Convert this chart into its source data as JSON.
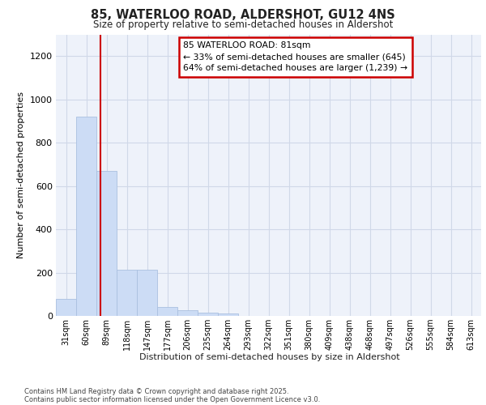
{
  "title_line1": "85, WATERLOO ROAD, ALDERSHOT, GU12 4NS",
  "title_line2": "Size of property relative to semi-detached houses in Aldershot",
  "xlabel": "Distribution of semi-detached houses by size in Aldershot",
  "ylabel": "Number of semi-detached properties",
  "categories": [
    "31sqm",
    "60sqm",
    "89sqm",
    "118sqm",
    "147sqm",
    "177sqm",
    "206sqm",
    "235sqm",
    "264sqm",
    "293sqm",
    "322sqm",
    "351sqm",
    "380sqm",
    "409sqm",
    "438sqm",
    "468sqm",
    "497sqm",
    "526sqm",
    "555sqm",
    "584sqm",
    "613sqm"
  ],
  "values": [
    80,
    920,
    670,
    215,
    215,
    40,
    25,
    15,
    10,
    0,
    0,
    0,
    0,
    0,
    0,
    0,
    0,
    0,
    0,
    0,
    0
  ],
  "bar_color": "#ccdcf5",
  "bar_edge_color": "#aac0e0",
  "grid_color": "#d0d8e8",
  "vline_color": "#cc0000",
  "annotation_text": "85 WATERLOO ROAD: 81sqm\n← 33% of semi-detached houses are smaller (645)\n64% of semi-detached houses are larger (1,239) →",
  "annotation_box_edge_color": "#cc0000",
  "ylim": [
    0,
    1300
  ],
  "yticks": [
    0,
    200,
    400,
    600,
    800,
    1000,
    1200
  ],
  "footer_line1": "Contains HM Land Registry data © Crown copyright and database right 2025.",
  "footer_line2": "Contains public sector information licensed under the Open Government Licence v3.0.",
  "background_color": "#ffffff",
  "plot_bg_color": "#eef2fa"
}
